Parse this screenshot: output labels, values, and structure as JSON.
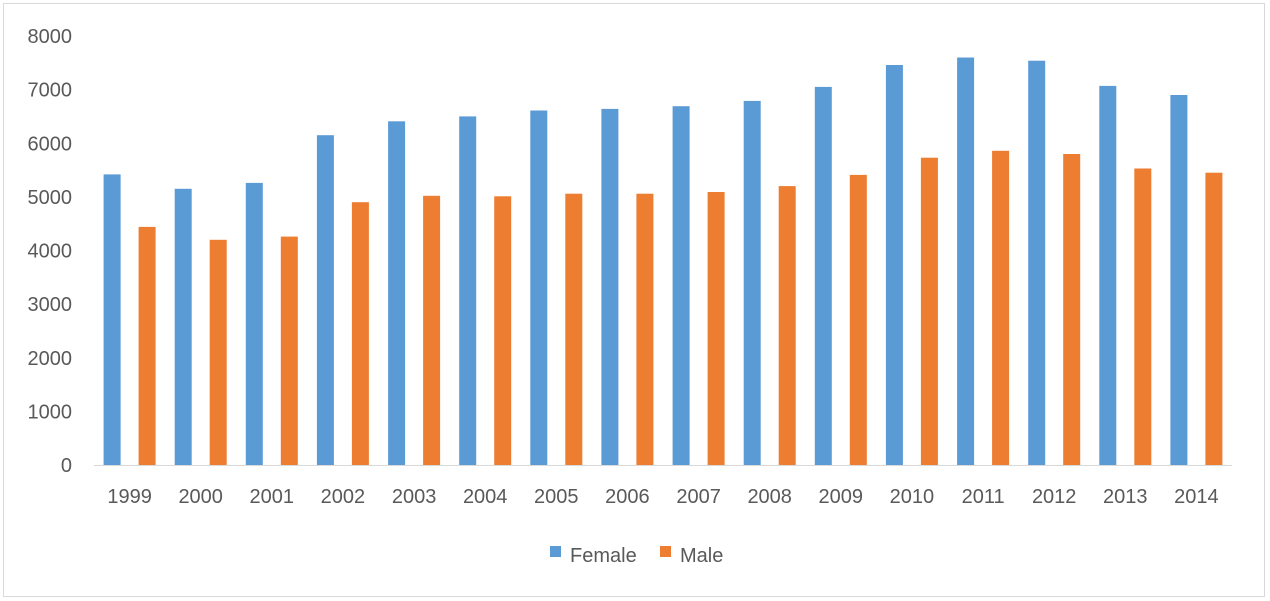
{
  "chart_data": {
    "type": "bar",
    "title": "",
    "xlabel": "",
    "ylabel": "",
    "categories": [
      "1999",
      "2000",
      "2001",
      "2002",
      "2003",
      "2004",
      "2005",
      "2006",
      "2007",
      "2008",
      "2009",
      "2010",
      "2011",
      "2012",
      "2013",
      "2014"
    ],
    "series": [
      {
        "name": "Female",
        "color": "#5b9bd5",
        "values": [
          5420,
          5150,
          5260,
          6150,
          6410,
          6500,
          6610,
          6640,
          6690,
          6790,
          7050,
          7460,
          7600,
          7540,
          7070,
          6900
        ]
      },
      {
        "name": "Male",
        "color": "#ed7d31",
        "values": [
          4440,
          4200,
          4260,
          4900,
          5020,
          5010,
          5060,
          5060,
          5090,
          5200,
          5410,
          5730,
          5860,
          5800,
          5530,
          5450
        ]
      }
    ],
    "ylim": [
      0,
      8000
    ],
    "yticks": [
      0,
      1000,
      2000,
      3000,
      4000,
      5000,
      6000,
      7000,
      8000
    ],
    "grid": false,
    "legend": "bottom-center",
    "axis_color": "#d9d9d9",
    "text_color": "#595959"
  }
}
